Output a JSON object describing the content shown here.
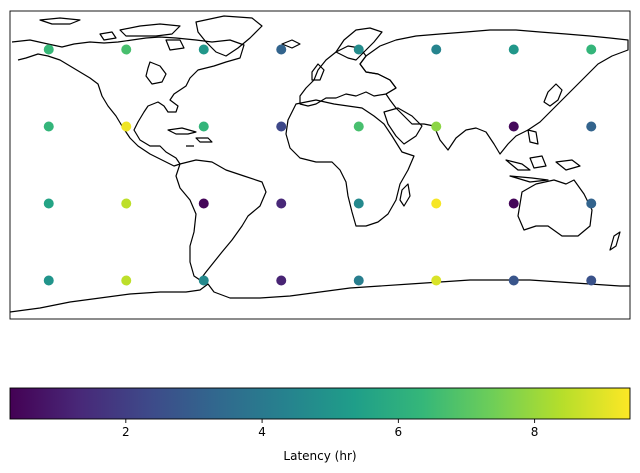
{
  "chart_data": {
    "type": "scatter",
    "projection": "PlateCarree",
    "basemap": "coastlines",
    "x_domain": [
      -180,
      180
    ],
    "y_domain": [
      -90,
      90
    ],
    "colormap": "viridis",
    "colormap_stops": [
      "#440154",
      "#482878",
      "#3e4989",
      "#31688e",
      "#26828e",
      "#1f9e89",
      "#35b779",
      "#6ece58",
      "#b5de2b",
      "#fde725"
    ],
    "color_range": [
      0.3,
      9.4
    ],
    "colorbar": {
      "label": "Latency (hr)",
      "orientation": "horizontal",
      "placement": "bottom",
      "ticks": [
        2,
        4,
        6,
        8
      ]
    },
    "points": [
      {
        "lon": -157.5,
        "lat": 67.5,
        "value": 6.4
      },
      {
        "lon": -112.5,
        "lat": 67.5,
        "value": 6.7
      },
      {
        "lon": -67.5,
        "lat": 67.5,
        "value": 5.1
      },
      {
        "lon": -22.5,
        "lat": 67.5,
        "value": 3.2
      },
      {
        "lon": 22.5,
        "lat": 67.5,
        "value": 4.7
      },
      {
        "lon": 67.5,
        "lat": 67.5,
        "value": 4.4
      },
      {
        "lon": 112.5,
        "lat": 67.5,
        "value": 5.1
      },
      {
        "lon": 157.5,
        "lat": 67.5,
        "value": 6.3
      },
      {
        "lon": -157.5,
        "lat": 22.5,
        "value": 6.3
      },
      {
        "lon": -112.5,
        "lat": 22.5,
        "value": 9.2
      },
      {
        "lon": -67.5,
        "lat": 22.5,
        "value": 6.3
      },
      {
        "lon": -22.5,
        "lat": 22.5,
        "value": 2.3
      },
      {
        "lon": 22.5,
        "lat": 22.5,
        "value": 6.7
      },
      {
        "lon": 67.5,
        "lat": 22.5,
        "value": 7.8
      },
      {
        "lon": 112.5,
        "lat": 22.5,
        "value": 0.5
      },
      {
        "lon": 157.5,
        "lat": 22.5,
        "value": 3.2
      },
      {
        "lon": -157.5,
        "lat": -22.5,
        "value": 5.6
      },
      {
        "lon": -112.5,
        "lat": -22.5,
        "value": 8.5
      },
      {
        "lon": -67.5,
        "lat": -22.5,
        "value": 0.4
      },
      {
        "lon": -22.5,
        "lat": -22.5,
        "value": 1.3
      },
      {
        "lon": 22.5,
        "lat": -22.5,
        "value": 4.6
      },
      {
        "lon": 67.5,
        "lat": -22.5,
        "value": 9.3
      },
      {
        "lon": 112.5,
        "lat": -22.5,
        "value": 0.4
      },
      {
        "lon": 157.5,
        "lat": -22.5,
        "value": 3.2
      },
      {
        "lon": -157.5,
        "lat": -67.5,
        "value": 5.0
      },
      {
        "lon": -112.5,
        "lat": -67.5,
        "value": 8.5
      },
      {
        "lon": -67.5,
        "lat": -67.5,
        "value": 4.6
      },
      {
        "lon": -22.5,
        "lat": -67.5,
        "value": 1.2
      },
      {
        "lon": 22.5,
        "lat": -67.5,
        "value": 4.2
      },
      {
        "lon": 67.5,
        "lat": -67.5,
        "value": 8.9
      },
      {
        "lon": 112.5,
        "lat": -67.5,
        "value": 2.7
      },
      {
        "lon": 157.5,
        "lat": -67.5,
        "value": 2.6
      }
    ]
  }
}
